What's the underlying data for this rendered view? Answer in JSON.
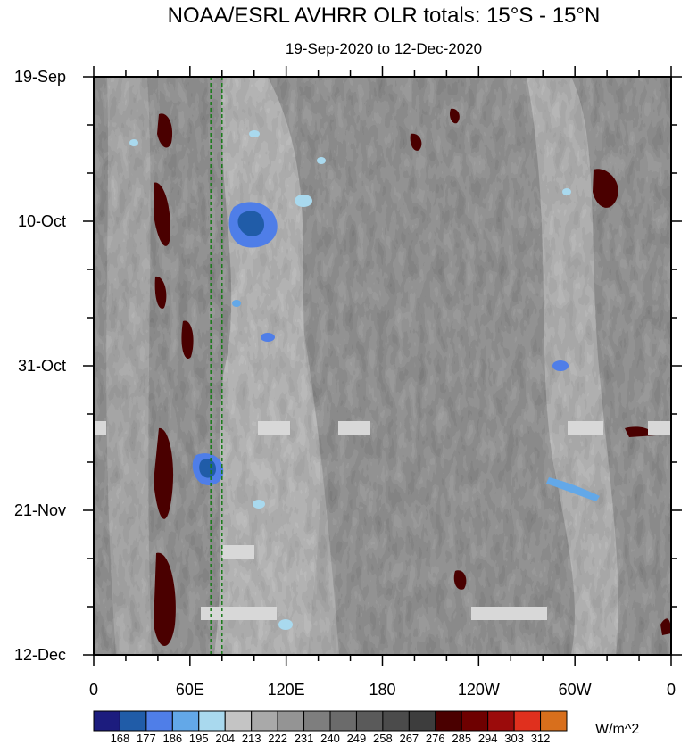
{
  "chart_data": {
    "type": "heatmap",
    "title": "NOAA/ESRL AVHRR OLR totals: 15°S - 15°N",
    "subtitle": "19-Sep-2020 to 12-Dec-2020",
    "x_ticks": [
      {
        "lon": 0,
        "label": "0"
      },
      {
        "lon": 60,
        "label": "60E"
      },
      {
        "lon": 120,
        "label": "120E"
      },
      {
        "lon": 180,
        "label": "180"
      },
      {
        "lon": 240,
        "label": "120W"
      },
      {
        "lon": 300,
        "label": "60W"
      },
      {
        "lon": 360,
        "label": "0"
      }
    ],
    "y_ticks": [
      {
        "day": 0,
        "label": "19-Sep"
      },
      {
        "day": 21,
        "label": "10-Oct"
      },
      {
        "day": 42,
        "label": "31-Oct"
      },
      {
        "day": 63,
        "label": "21-Nov"
      },
      {
        "day": 84,
        "label": "12-Dec"
      }
    ],
    "colorbar": {
      "unit": "W/m^2",
      "levels": [
        168,
        177,
        186,
        195,
        204,
        213,
        222,
        231,
        240,
        249,
        258,
        267,
        276,
        285,
        294,
        303,
        312
      ],
      "colors": [
        "#1c1c7e",
        "#205ca8",
        "#4f7ee8",
        "#63a8e8",
        "#a9d9ee",
        "#c4c4c4",
        "#a9a9a9",
        "#949494",
        "#7e7e7e",
        "#6b6b6b",
        "#5a5a5a",
        "#4b4b4b",
        "#3d3d3d",
        "#4a0000",
        "#6e0000",
        "#9b0b0b",
        "#e0301e",
        "#d86f1c"
      ]
    },
    "reference_lines_lon": [
      73,
      80
    ]
  }
}
